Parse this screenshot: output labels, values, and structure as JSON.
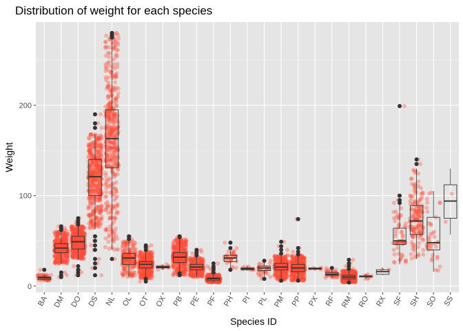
{
  "chart_data": {
    "type": "boxplot-jitter",
    "title": "Distribution of weight for each species",
    "xlabel": "Species ID",
    "ylabel": "Weight",
    "ylim": [
      -7,
      292
    ],
    "yticks": [
      0,
      100,
      200
    ],
    "grid": true,
    "background": "#e5e5e5",
    "point_color": "#ff4d3a",
    "box_color": "#333333",
    "categories": [
      "BA",
      "DM",
      "DO",
      "DS",
      "NL",
      "OL",
      "OT",
      "OX",
      "PB",
      "PE",
      "PF",
      "PH",
      "PI",
      "PL",
      "PM",
      "PP",
      "PX",
      "RF",
      "RM",
      "RO",
      "RX",
      "SF",
      "SH",
      "SO",
      "SS"
    ],
    "boxes": [
      {
        "id": "BA",
        "min": 6,
        "q1": 7,
        "median": 9,
        "q3": 10,
        "max": 13,
        "outliers": [
          18
        ],
        "n": 45
      },
      {
        "id": "DM",
        "min": 25,
        "q1": 37,
        "median": 42,
        "q3": 47,
        "max": 61,
        "outliers": [
          10,
          12,
          15,
          62,
          64,
          66
        ],
        "n": 1400
      },
      {
        "id": "DO",
        "min": 30,
        "q1": 41,
        "median": 49,
        "q3": 55,
        "max": 66,
        "outliers": [
          12,
          15,
          18,
          22,
          68,
          70,
          72,
          75
        ],
        "n": 700
      },
      {
        "id": "DS",
        "min": 63,
        "q1": 100,
        "median": 121,
        "q3": 140,
        "max": 168,
        "outliers": [
          12,
          20,
          25,
          30,
          40,
          45,
          50,
          55,
          175,
          180,
          190
        ],
        "n": 1250
      },
      {
        "id": "NL",
        "min": 40,
        "q1": 131,
        "median": 163,
        "q3": 195,
        "max": 278,
        "outliers": [
          30,
          275,
          277,
          279,
          280
        ],
        "n": 1150
      },
      {
        "id": "OL",
        "min": 10,
        "q1": 24,
        "median": 31,
        "q3": 36,
        "max": 50,
        "outliers": [
          52,
          55
        ],
        "n": 190
      },
      {
        "id": "OT",
        "min": 8,
        "q1": 20,
        "median": 24,
        "q3": 27,
        "max": 38,
        "outliers": [
          5,
          8,
          40,
          43,
          45
        ],
        "n": 450
      },
      {
        "id": "OX",
        "min": 18,
        "q1": 20,
        "median": 21,
        "q3": 22,
        "max": 24,
        "outliers": [],
        "n": 10
      },
      {
        "id": "PB",
        "min": 12,
        "q1": 26,
        "median": 32,
        "q3": 37,
        "max": 52,
        "outliers": [
          12,
          14,
          54,
          55
        ],
        "n": 1100
      },
      {
        "id": "PE",
        "min": 10,
        "q1": 18,
        "median": 21,
        "q3": 24,
        "max": 32,
        "outliers": [
          34,
          36,
          38,
          40
        ],
        "n": 300
      },
      {
        "id": "PF",
        "min": 4,
        "q1": 6,
        "median": 8,
        "q3": 9,
        "max": 13,
        "outliers": [
          15,
          18,
          20,
          22,
          25
        ],
        "n": 400
      },
      {
        "id": "PH",
        "min": 18,
        "q1": 27,
        "median": 31,
        "q3": 34,
        "max": 39,
        "outliers": [
          18,
          42,
          48
        ],
        "n": 30
      },
      {
        "id": "PI",
        "min": 17,
        "q1": 18,
        "median": 19,
        "q3": 20,
        "max": 22,
        "outliers": [],
        "n": 10
      },
      {
        "id": "PL",
        "min": 8,
        "q1": 17,
        "median": 20,
        "q3": 22,
        "max": 26,
        "outliers": [
          8,
          28
        ],
        "n": 30
      },
      {
        "id": "PM",
        "min": 7,
        "q1": 18,
        "median": 21,
        "q3": 25,
        "max": 34,
        "outliers": [
          6,
          36,
          40,
          44,
          49
        ],
        "n": 350
      },
      {
        "id": "PP",
        "min": 6,
        "q1": 16,
        "median": 20,
        "q3": 24,
        "max": 34,
        "outliers": [
          6,
          35,
          38,
          42,
          74
        ],
        "n": 800
      },
      {
        "id": "PX",
        "min": 18,
        "q1": 19,
        "median": 19,
        "q3": 20,
        "max": 20,
        "outliers": [],
        "n": 6
      },
      {
        "id": "RF",
        "min": 9,
        "q1": 12,
        "median": 13,
        "q3": 15,
        "max": 18,
        "outliers": [
          20
        ],
        "n": 40
      },
      {
        "id": "RM",
        "min": 4,
        "q1": 8,
        "median": 10,
        "q3": 12,
        "max": 17,
        "outliers": [
          4,
          19,
          22,
          25,
          29
        ],
        "n": 600
      },
      {
        "id": "RO",
        "min": 8,
        "q1": 10,
        "median": 11,
        "q3": 11,
        "max": 13,
        "outliers": [],
        "n": 8
      },
      {
        "id": "RX",
        "min": 12,
        "q1": 13,
        "median": 16,
        "q3": 18,
        "max": 20,
        "outliers": [],
        "n": 2
      },
      {
        "id": "SF",
        "min": 24,
        "q1": 46,
        "median": 50,
        "q3": 64,
        "max": 90,
        "outliers": [
          92,
          95,
          100,
          199
        ],
        "n": 60
      },
      {
        "id": "SH",
        "min": 30,
        "q1": 57,
        "median": 72,
        "q3": 89,
        "max": 130,
        "outliers": [
          135,
          140
        ],
        "n": 150
      },
      {
        "id": "SO",
        "min": 16,
        "q1": 40,
        "median": 48,
        "q3": 76,
        "max": 105,
        "outliers": [],
        "n": 40
      },
      {
        "id": "SS",
        "min": 57,
        "q1": 75,
        "median": 94,
        "q3": 112,
        "max": 130,
        "outliers": [],
        "n": 2
      }
    ]
  }
}
